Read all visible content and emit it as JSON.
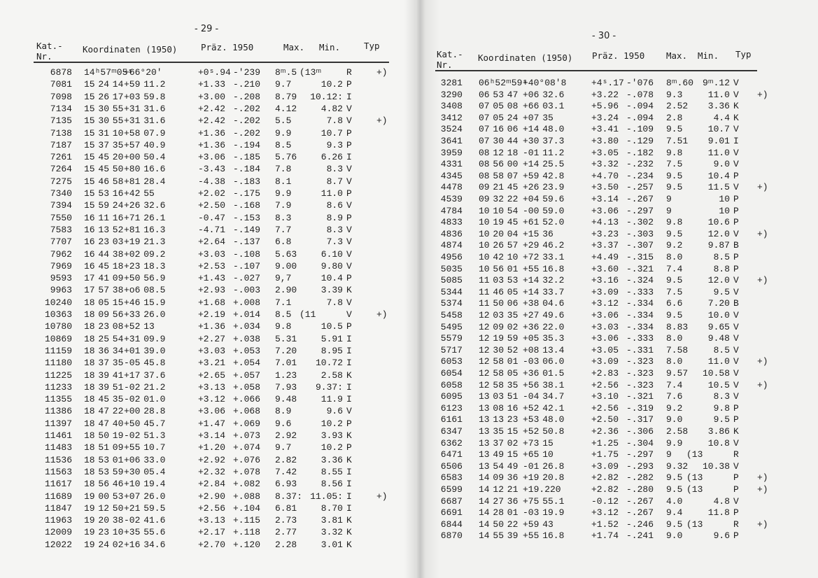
{
  "pages": [
    {
      "page_number": "- 29 -",
      "header": {
        "nr_1": "Kat.-",
        "nr_2": "Nr.",
        "coords": "Koordinaten (1950)",
        "prec": "Präz. 1950",
        "max": "Max.",
        "min": "Min.",
        "typ": "Typ"
      },
      "rows": [
        [
          "6878",
          "14ʰ57ᵐ05ˢ",
          "+66°20'",
          "+0ˢ.94",
          "-ʹ239",
          "8ᵐ.5",
          "(13ᵐ",
          "R",
          "+)"
        ],
        [
          "7081",
          "15 24 14",
          "+59 11.2",
          "+1.33",
          "-.210",
          "9.7",
          "10.2",
          "P",
          ""
        ],
        [
          "7098",
          "15 26 17",
          "+03 59.8",
          "+3.00",
          "-.208",
          "8.79",
          "10.12:",
          "I",
          ""
        ],
        [
          "7134",
          "15 30 55",
          "+31 31.6",
          "+2.42",
          "-.202",
          "4.12",
          "4.82",
          "V",
          ""
        ],
        [
          "7135",
          "15 30 55",
          "+31 31.6",
          "+2.42",
          "-.202",
          "5.5",
          "7.8",
          "V",
          "+)"
        ],
        [
          "7138",
          "15 31 10",
          "+58 07.9",
          "+1.36",
          "-.202",
          "9.9",
          "10.7",
          "P",
          ""
        ],
        [
          "7187",
          "15 37 35",
          "+57 40.9",
          "+1.36",
          "-.194",
          "8.5",
          "9.3",
          "P",
          ""
        ],
        [
          "7261",
          "15 45 20",
          "+00 50.4",
          "+3.06",
          "-.185",
          "5.76",
          "6.26",
          "I",
          ""
        ],
        [
          "7264",
          "15 45 50",
          "+80 16.6",
          "-3.43",
          "-.184",
          "7.8",
          "8.3",
          "V",
          ""
        ],
        [
          "7275",
          "15 46 58",
          "+81 28.4",
          "-4.38",
          "-.183",
          "8.1",
          "8.7",
          "V",
          ""
        ],
        [
          "7340",
          "15 53 16",
          "+42 55",
          "+2.02",
          "-.175",
          "9.9",
          "11.0",
          "P",
          ""
        ],
        [
          "7394",
          "15 59 24",
          "+26 32.6",
          "+2.50",
          "-.168",
          "7.9",
          "8.6",
          "V",
          ""
        ],
        [
          "7550",
          "16 11 16",
          "+71 26.1",
          "-0.47",
          "-.153",
          "8.3",
          "8.9",
          "P",
          ""
        ],
        [
          "7583",
          "16 13 52",
          "+81 16.3",
          "-4.71",
          "-.149",
          "7.7",
          "8.3",
          "V",
          ""
        ],
        [
          "7707",
          "16 23 03",
          "+19 21.3",
          "+2.64",
          "-.137",
          "6.8",
          "7.3",
          "V",
          ""
        ],
        [
          "7962",
          "16 44 38",
          "+02 09.2",
          "+3.03",
          "-.108",
          "5.63",
          "6.10",
          "V",
          ""
        ],
        [
          "7969",
          "16 45 18",
          "+23 18.3",
          "+2.53",
          "-.107",
          "9.00",
          "9.80",
          "V",
          ""
        ],
        [
          "9593",
          "17 41 09",
          "+50 56.9",
          "+1.43",
          "-.027",
          "9,7",
          "10.4",
          "P",
          ""
        ],
        [
          "9963",
          "17 57 38",
          "+o6 08.5",
          "+2.93",
          "-.003",
          "2.90",
          "3.39",
          "K",
          ""
        ],
        [
          "10240",
          "18 05 15",
          "+46 15.9",
          "+1.68",
          "+.008",
          "7.1",
          "7.8",
          "V",
          ""
        ],
        [
          "10363",
          "18 09 56",
          "+33 26.0",
          "+2.19",
          "+.014",
          "8.5",
          "(11",
          "V",
          "+)"
        ],
        [
          "10780",
          "18 23 08",
          "+52 13",
          "+1.36",
          "+.034",
          "9.8",
          "10.5",
          "P",
          ""
        ],
        [
          "10869",
          "18 25 54",
          "+31 09.9",
          "+2.27",
          "+.038",
          "5.31",
          "5.91",
          "I",
          ""
        ],
        [
          "11159",
          "18 36 34",
          "+01 39.0",
          "+3.03",
          "+.053",
          "7.20",
          "8.95",
          "I",
          ""
        ],
        [
          "11180",
          "18 37 35",
          "-05 45.8",
          "+3.21",
          "+.054",
          "7.01",
          "10.72",
          "I",
          ""
        ],
        [
          "11225",
          "18 39 41",
          "+17 37.6",
          "+2.65",
          "+.057",
          "1.23",
          "2.58",
          "K",
          ""
        ],
        [
          "11233",
          "18 39 51",
          "-02 21.2",
          "+3.13",
          "+.058",
          "7.93",
          "9.37:",
          "I",
          ""
        ],
        [
          "11355",
          "18 45 35",
          "-02 01.0",
          "+3.12",
          "+.066",
          "9.48",
          "11.9",
          "I",
          ""
        ],
        [
          "11386",
          "18 47 22",
          "+00 28.8",
          "+3.06",
          "+.068",
          "8.9",
          "9.6",
          "V",
          ""
        ],
        [
          "11397",
          "18 47 40",
          "+50 45.7",
          "+1.47",
          "+.069",
          "9.6",
          "10.2",
          "P",
          ""
        ],
        [
          "11461",
          "18 50 19",
          "-02 51.3",
          "+3.14",
          "+.073",
          "2.92",
          "3.93",
          "K",
          ""
        ],
        [
          "11483",
          "18 51 09",
          "+55 10.7",
          "+1.20",
          "+.074",
          "9.7",
          "10.2",
          "P",
          ""
        ],
        [
          "11536",
          "18 53 01",
          "+06 33.0",
          "+2.92",
          "+.076",
          "2.82",
          "3.36",
          "K",
          ""
        ],
        [
          "11563",
          "18 53 59",
          "+30 05.4",
          "+2.32",
          "+.078",
          "7.42",
          "8.55",
          "I",
          ""
        ],
        [
          "11617",
          "18 56 46",
          "+10 19.4",
          "+2.84",
          "+.082",
          "6.93",
          "8.56",
          "I",
          ""
        ],
        [
          "11689",
          "19 00 53",
          "+07 26.0",
          "+2.90",
          "+.088",
          "8.37:",
          "11.05:",
          "I",
          "+)"
        ],
        [
          "11847",
          "19 12 50",
          "+21 59.5",
          "+2.56",
          "+.104",
          "6.81",
          "8.70",
          "I",
          ""
        ],
        [
          "11963",
          "19 20 38",
          "-02 41.6",
          "+3.13",
          "+.115",
          "2.73",
          "3.81",
          "K",
          ""
        ],
        [
          "12009",
          "19 23 10",
          "+35 55.6",
          "+2.17",
          "+.118",
          "2.77",
          "3.32",
          "K",
          ""
        ],
        [
          "12022",
          "19 24 02",
          "+16 34.6",
          "+2.70",
          "+.120",
          "2.28",
          "3.01",
          "K",
          ""
        ]
      ]
    },
    {
      "page_number": "- 30 -",
      "header": {
        "nr_1": "Kat.-",
        "nr_2": "Nr.",
        "coords": "Koordinaten (1950)",
        "prec": "Präz. 1950",
        "max": "Max.",
        "min": "Min.",
        "typ": "Typ"
      },
      "rows": [
        [
          "3281",
          "06ʰ52ᵐ59ˢ",
          "+40°08ʹ8",
          "+4ˢ.17",
          "-ʹ076",
          "8ᵐ.60",
          "9ᵐ.12",
          "V",
          ""
        ],
        [
          "3290",
          "06 53 47",
          "+06 32.6",
          "+3.22",
          "-.078",
          "9.3",
          "11.0",
          "V",
          "+)"
        ],
        [
          "3408",
          "07 05 08",
          "+66 03.1",
          "+5.96",
          "-.094",
          "2.52",
          "3.36",
          "K",
          ""
        ],
        [
          "3412",
          "07 05 24",
          "+07 35",
          "+3.24",
          "-.094",
          "2.8",
          "4.4",
          "K",
          ""
        ],
        [
          "3524",
          "07 16 06",
          "+14 48.0",
          "+3.41",
          "-.109",
          "9.5",
          "10.7",
          "V",
          ""
        ],
        [
          "3641",
          "07 30 44",
          "+30 37.3",
          "+3.80",
          "-.129",
          "7.51",
          "9.01",
          "I",
          ""
        ],
        [
          "3959",
          "08 12 18",
          "-01 11.2",
          "+3.05",
          "-.182",
          "9.8",
          "11.0",
          "V",
          ""
        ],
        [
          "4331",
          "08 56 00",
          "+14 25.5",
          "+3.32",
          "-.232",
          "7.5",
          "9.0",
          "V",
          ""
        ],
        [
          "4345",
          "08 58 07",
          "+59 42.8",
          "+4.70",
          "-.234",
          "9.5",
          "10.4",
          "P",
          ""
        ],
        [
          "4478",
          "09 21 45",
          "+26 23.9",
          "+3.50",
          "-.257",
          "9.5",
          "11.5",
          "V",
          "+)"
        ],
        [
          "4539",
          "09 32 22",
          "+04 59.6",
          "+3.14",
          "-.267",
          "9",
          "10",
          "P",
          ""
        ],
        [
          "4784",
          "10 10 54",
          "-00 59.0",
          "+3.06",
          "-.297",
          "9",
          "10",
          "P",
          ""
        ],
        [
          "4833",
          "10 19 45",
          "+61 52.0",
          "+4.13",
          "-.302",
          "9.8",
          "10.6",
          "P",
          ""
        ],
        [
          "4836",
          "10 20 04",
          "+15 36",
          "+3.23",
          "-.303",
          "9.5",
          "12.0",
          "V",
          "+)"
        ],
        [
          "4874",
          "10 26 57",
          "+29 46.2",
          "+3.37",
          "-.307",
          "9.2",
          "9.87",
          "B",
          ""
        ],
        [
          "4956",
          "10 42 10",
          "+72 33.1",
          "+4.49",
          "-.315",
          "8.0",
          "8.5",
          "P",
          ""
        ],
        [
          "5035",
          "10 56 01",
          "+55 16.8",
          "+3.60",
          "-.321",
          "7.4",
          "8.8",
          "P",
          ""
        ],
        [
          "5085",
          "11 03 53",
          "+14 32.2",
          "+3.16",
          "-.324",
          "9.5",
          "12.0",
          "V",
          "+)"
        ],
        [
          "5344",
          "11 46 05",
          "+14 33.7",
          "+3.09",
          "-.333",
          "7.5",
          "9.5",
          "V",
          ""
        ],
        [
          "5374",
          "11 50 06",
          "+38 04.6",
          "+3.12",
          "-.334",
          "6.6",
          "7.20",
          "B",
          ""
        ],
        [
          "5458",
          "12 03 35",
          "+27 49.6",
          "+3.06",
          "-.334",
          "9.5",
          "10.0",
          "V",
          ""
        ],
        [
          "5495",
          "12 09 02",
          "+36 22.0",
          "+3.03",
          "-.334",
          "8.83",
          "9.65",
          "V",
          ""
        ],
        [
          "5579",
          "12 19 59",
          "+05 35.3",
          "+3.06",
          "-.333",
          "8.0",
          "9.48",
          "V",
          ""
        ],
        [
          "5717",
          "12 30 52",
          "+08 13.4",
          "+3.05",
          "-.331",
          "7.58",
          "8.5",
          "V",
          ""
        ],
        [
          "6053",
          "12 58 01",
          "-03 06.0",
          "+3.09",
          "-.323",
          "8.0",
          "11.0",
          "V",
          "+)"
        ],
        [
          "6054",
          "12 58 05",
          "+36 01.5",
          "+2.83",
          "-.323",
          "9.57",
          "10.58",
          "V",
          ""
        ],
        [
          "6058",
          "12 58 35",
          "+56 38.1",
          "+2.56",
          "-.323",
          "7.4",
          "10.5",
          "V",
          "+)"
        ],
        [
          "6095",
          "13 03 51",
          "-04 34.7",
          "+3.10",
          "-.321",
          "7.6",
          "8.3",
          "V",
          ""
        ],
        [
          "6123",
          "13 08 16",
          "+52 42.1",
          "+2.56",
          "-.319",
          "9.2",
          "9.8",
          "P",
          ""
        ],
        [
          "6161",
          "13 13 23",
          "+53 48.0",
          "+2.50",
          "-.317",
          "9.0",
          "9.5",
          "P",
          ""
        ],
        [
          "6347",
          "13 35 15",
          "+52 50.8",
          "+2.36",
          "-.306",
          "2.58",
          "3.86",
          "K",
          ""
        ],
        [
          "6362",
          "13 37 02",
          "+73 15",
          "+1.25",
          "-.304",
          "9.9",
          "10.8",
          "V",
          ""
        ],
        [
          "6471",
          "13 49 15",
          "+65 10",
          "+1.75",
          "-.297",
          "9",
          "(13",
          "R",
          ""
        ],
        [
          "6506",
          "13 54 49",
          "-01 26.8",
          "+3.09",
          "-.293",
          "9.32",
          "10.38",
          "V",
          ""
        ],
        [
          "6583",
          "14 09 36",
          "+19 20.8",
          "+2.82",
          "-.282",
          "9.5",
          "(13",
          "P",
          "+)"
        ],
        [
          "6599",
          "14 12 21",
          "+19.220",
          "+2.82",
          "-.280",
          "9.5",
          "(13",
          "P",
          "+)"
        ],
        [
          "6687",
          "14 27 36",
          "+75 55.1",
          "-0.12",
          "-.267",
          "4.0",
          "4.8",
          "V",
          ""
        ],
        [
          "6691",
          "14 28 01",
          "-03 19.9",
          "+3.12",
          "-.267",
          "9.4",
          "11.8",
          "P",
          ""
        ],
        [
          "6844",
          "14 50 22",
          "+59 43",
          "+1.52",
          "-.246",
          "9.5",
          "(13",
          "R",
          "+)"
        ],
        [
          "6870",
          "14 55 39",
          "+55 16.8",
          "+1.74",
          "-.241",
          "9.0",
          "9.6",
          "P",
          ""
        ]
      ]
    }
  ]
}
